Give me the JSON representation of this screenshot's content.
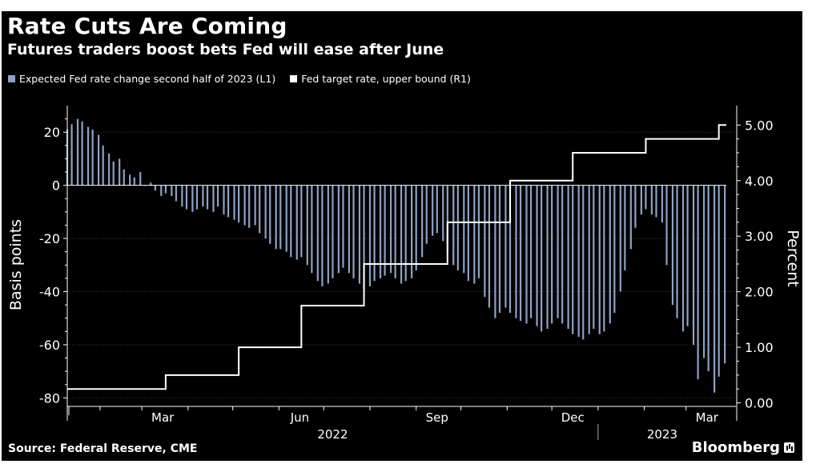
{
  "header": {
    "title": "Rate Cuts Are Coming",
    "subtitle": "Futures traders boost bets Fed will ease after June"
  },
  "footer": {
    "source": "Source: Federal Reserve, CME",
    "brand": "Bloomberg"
  },
  "colors": {
    "background": "#000000",
    "bars": "#8ea2c4",
    "line": "#ffffff",
    "text": "#ffffff",
    "grid": "#3a3a3a"
  },
  "chart_data": {
    "type": "bar",
    "title": "Rate Cuts Are Coming",
    "subtitle": "Futures traders boost bets Fed will ease after June",
    "grid": "horizontal dashed",
    "legend_placement": "top-left",
    "x_axis": {
      "tick_labels": [
        "Mar",
        "Jun",
        "Sep",
        "Dec",
        "Mar"
      ],
      "year_labels": [
        "2022",
        "2023"
      ],
      "range": [
        "2022-01-10",
        "2023-03-28"
      ]
    },
    "y_left": {
      "label": "Basis points",
      "ticks": [
        20,
        0,
        -20,
        -40,
        -60,
        -80
      ],
      "range": [
        -85,
        30
      ]
    },
    "y_right": {
      "label": "Percent",
      "ticks": [
        "5.00",
        "4.00",
        "3.00",
        "2.00",
        "1.00",
        "0.00"
      ],
      "range": [
        -0.15,
        5.35
      ]
    },
    "series": [
      {
        "name": "Expected Fed rate change second half of 2023 (L1)",
        "type": "bar",
        "points": [
          [
            "2022-01-10",
            21
          ],
          [
            "2022-01-13",
            23
          ],
          [
            "2022-01-17",
            25
          ],
          [
            "2022-01-20",
            24
          ],
          [
            "2022-01-24",
            22
          ],
          [
            "2022-01-27",
            21
          ],
          [
            "2022-01-31",
            19
          ],
          [
            "2022-02-03",
            15
          ],
          [
            "2022-02-07",
            12
          ],
          [
            "2022-02-10",
            9
          ],
          [
            "2022-02-14",
            10
          ],
          [
            "2022-02-17",
            6
          ],
          [
            "2022-02-21",
            4
          ],
          [
            "2022-02-24",
            3
          ],
          [
            "2022-02-28",
            5
          ],
          [
            "2022-03-03",
            0
          ],
          [
            "2022-03-07",
            1
          ],
          [
            "2022-03-10",
            -2
          ],
          [
            "2022-03-14",
            -4
          ],
          [
            "2022-03-17",
            -3
          ],
          [
            "2022-03-21",
            -4
          ],
          [
            "2022-03-24",
            -6
          ],
          [
            "2022-03-28",
            -8
          ],
          [
            "2022-03-31",
            -9
          ],
          [
            "2022-04-04",
            -10
          ],
          [
            "2022-04-07",
            -9
          ],
          [
            "2022-04-11",
            -8
          ],
          [
            "2022-04-14",
            -9
          ],
          [
            "2022-04-18",
            -10
          ],
          [
            "2022-04-21",
            -8
          ],
          [
            "2022-04-25",
            -11
          ],
          [
            "2022-04-28",
            -12
          ],
          [
            "2022-05-02",
            -13
          ],
          [
            "2022-05-05",
            -14
          ],
          [
            "2022-05-09",
            -15
          ],
          [
            "2022-05-12",
            -16
          ],
          [
            "2022-05-16",
            -15
          ],
          [
            "2022-05-19",
            -18
          ],
          [
            "2022-05-23",
            -20
          ],
          [
            "2022-05-26",
            -22
          ],
          [
            "2022-05-30",
            -24
          ],
          [
            "2022-06-02",
            -24
          ],
          [
            "2022-06-06",
            -25
          ],
          [
            "2022-06-09",
            -27
          ],
          [
            "2022-06-13",
            -28
          ],
          [
            "2022-06-16",
            -27
          ],
          [
            "2022-06-20",
            -30
          ],
          [
            "2022-06-23",
            -33
          ],
          [
            "2022-06-27",
            -36
          ],
          [
            "2022-06-30",
            -38
          ],
          [
            "2022-07-04",
            -37
          ],
          [
            "2022-07-07",
            -35
          ],
          [
            "2022-07-11",
            -33
          ],
          [
            "2022-07-14",
            -31
          ],
          [
            "2022-07-18",
            -33
          ],
          [
            "2022-07-21",
            -35
          ],
          [
            "2022-07-25",
            -37
          ],
          [
            "2022-07-28",
            -39
          ],
          [
            "2022-08-01",
            -38
          ],
          [
            "2022-08-04",
            -36
          ],
          [
            "2022-08-08",
            -35
          ],
          [
            "2022-08-11",
            -34
          ],
          [
            "2022-08-15",
            -33
          ],
          [
            "2022-08-18",
            -35
          ],
          [
            "2022-08-22",
            -37
          ],
          [
            "2022-08-25",
            -36
          ],
          [
            "2022-08-29",
            -35
          ],
          [
            "2022-09-01",
            -32
          ],
          [
            "2022-09-05",
            -27
          ],
          [
            "2022-09-08",
            -22
          ],
          [
            "2022-09-12",
            -19
          ],
          [
            "2022-09-15",
            -18
          ],
          [
            "2022-09-19",
            -21
          ],
          [
            "2022-09-22",
            -25
          ],
          [
            "2022-09-26",
            -30
          ],
          [
            "2022-09-29",
            -32
          ],
          [
            "2022-10-03",
            -33
          ],
          [
            "2022-10-06",
            -36
          ],
          [
            "2022-10-10",
            -37
          ],
          [
            "2022-10-13",
            -35
          ],
          [
            "2022-10-17",
            -42
          ],
          [
            "2022-10-20",
            -46
          ],
          [
            "2022-10-24",
            -50
          ],
          [
            "2022-10-27",
            -48
          ],
          [
            "2022-10-31",
            -46
          ],
          [
            "2022-11-03",
            -48
          ],
          [
            "2022-11-07",
            -50
          ],
          [
            "2022-11-10",
            -51
          ],
          [
            "2022-11-14",
            -52
          ],
          [
            "2022-11-17",
            -50
          ],
          [
            "2022-11-21",
            -53
          ],
          [
            "2022-11-24",
            -55
          ],
          [
            "2022-11-28",
            -54
          ],
          [
            "2022-12-01",
            -52
          ],
          [
            "2022-12-05",
            -50
          ],
          [
            "2022-12-08",
            -52
          ],
          [
            "2022-12-12",
            -54
          ],
          [
            "2022-12-15",
            -56
          ],
          [
            "2022-12-19",
            -57
          ],
          [
            "2022-12-22",
            -58
          ],
          [
            "2022-12-26",
            -56
          ],
          [
            "2022-12-29",
            -54
          ],
          [
            "2023-01-02",
            -56
          ],
          [
            "2023-01-05",
            -55
          ],
          [
            "2023-01-09",
            -52
          ],
          [
            "2023-01-12",
            -48
          ],
          [
            "2023-01-16",
            -40
          ],
          [
            "2023-01-19",
            -32
          ],
          [
            "2023-01-23",
            -24
          ],
          [
            "2023-01-26",
            -16
          ],
          [
            "2023-01-30",
            -11
          ],
          [
            "2023-02-02",
            -9
          ],
          [
            "2023-02-06",
            -11
          ],
          [
            "2023-02-09",
            -12
          ],
          [
            "2023-02-13",
            -14
          ],
          [
            "2023-02-16",
            -30
          ],
          [
            "2023-02-20",
            -45
          ],
          [
            "2023-02-23",
            -50
          ],
          [
            "2023-02-27",
            -55
          ],
          [
            "2023-03-02",
            -53
          ],
          [
            "2023-03-06",
            -60
          ],
          [
            "2023-03-09",
            -73
          ],
          [
            "2023-03-13",
            -65
          ],
          [
            "2023-03-16",
            -70
          ],
          [
            "2023-03-20",
            -78
          ],
          [
            "2023-03-23",
            -72
          ],
          [
            "2023-03-27",
            -67
          ]
        ]
      },
      {
        "name": "Fed target rate, upper bound (R1)",
        "type": "step-line",
        "points": [
          [
            "2022-01-10",
            0.25
          ],
          [
            "2022-03-17",
            0.5
          ],
          [
            "2022-05-05",
            1.0
          ],
          [
            "2022-06-16",
            1.75
          ],
          [
            "2022-07-28",
            2.5
          ],
          [
            "2022-09-22",
            3.25
          ],
          [
            "2022-11-03",
            4.0
          ],
          [
            "2022-12-15",
            4.5
          ],
          [
            "2023-02-02",
            4.75
          ],
          [
            "2023-03-23",
            5.0
          ],
          [
            "2023-03-28",
            5.0
          ]
        ]
      }
    ]
  }
}
